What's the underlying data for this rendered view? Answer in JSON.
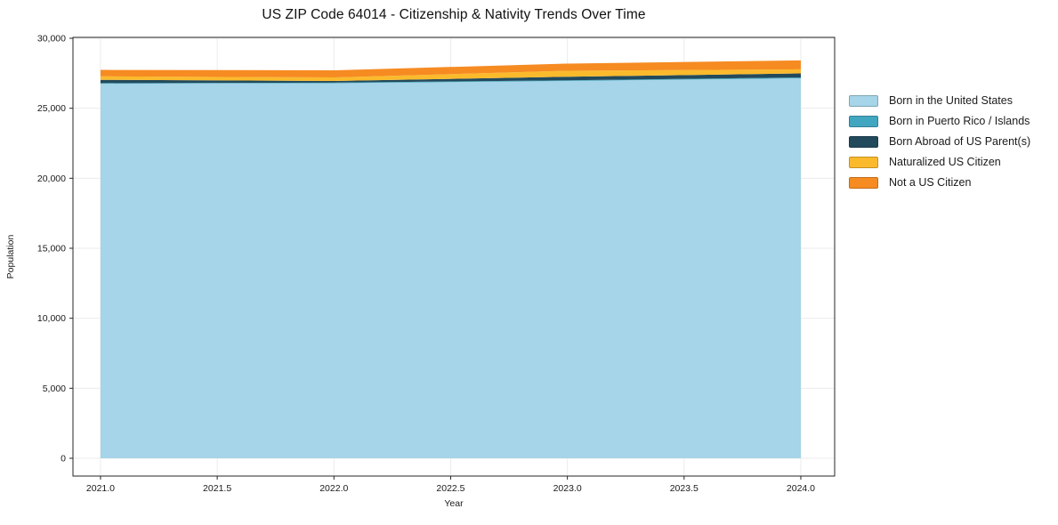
{
  "chart_data": {
    "type": "area",
    "stacked": true,
    "title": "US ZIP Code 64014 - Citizenship & Nativity Trends Over Time",
    "xlabel": "Year",
    "ylabel": "Population",
    "x": [
      2021,
      2022,
      2023,
      2024
    ],
    "series": [
      {
        "name": "Born in the United States",
        "color": "#a6d4e8",
        "values": [
          26750,
          26790,
          26950,
          27140
        ]
      },
      {
        "name": "Born in Puerto Rico / Islands",
        "color": "#41a6c0",
        "values": [
          50,
          40,
          50,
          60
        ]
      },
      {
        "name": "Born Abroad of US Parent(s)",
        "color": "#234a5c",
        "values": [
          230,
          120,
          250,
          290
        ]
      },
      {
        "name": "Naturalized US Citizen",
        "color": "#fbba2c",
        "values": [
          250,
          250,
          430,
          290
        ]
      },
      {
        "name": "Not a US Citizen",
        "color": "#f68b22",
        "values": [
          460,
          510,
          510,
          640
        ]
      }
    ],
    "xticks": [
      2021.0,
      2021.5,
      2022.0,
      2022.5,
      2023.0,
      2023.5,
      2024.0
    ],
    "xtick_labels": [
      "2021.0",
      "2021.5",
      "2022.0",
      "2022.5",
      "2023.0",
      "2023.5",
      "2024.0"
    ],
    "yticks": [
      0,
      5000,
      10000,
      15000,
      20000,
      25000,
      30000
    ],
    "ytick_labels": [
      "0",
      "5,000",
      "10,000",
      "15,000",
      "20,000",
      "25,000",
      "30,000"
    ],
    "xlim": [
      2020.882,
      2024.145
    ],
    "ylim": [
      -1271,
      30063
    ],
    "grid": true,
    "legend_position": "right",
    "colors": {
      "grid": "#ebebeb",
      "spine": "#262626",
      "tick_label": "#1a1a1a",
      "axis_label": "#1a1a1a"
    }
  }
}
